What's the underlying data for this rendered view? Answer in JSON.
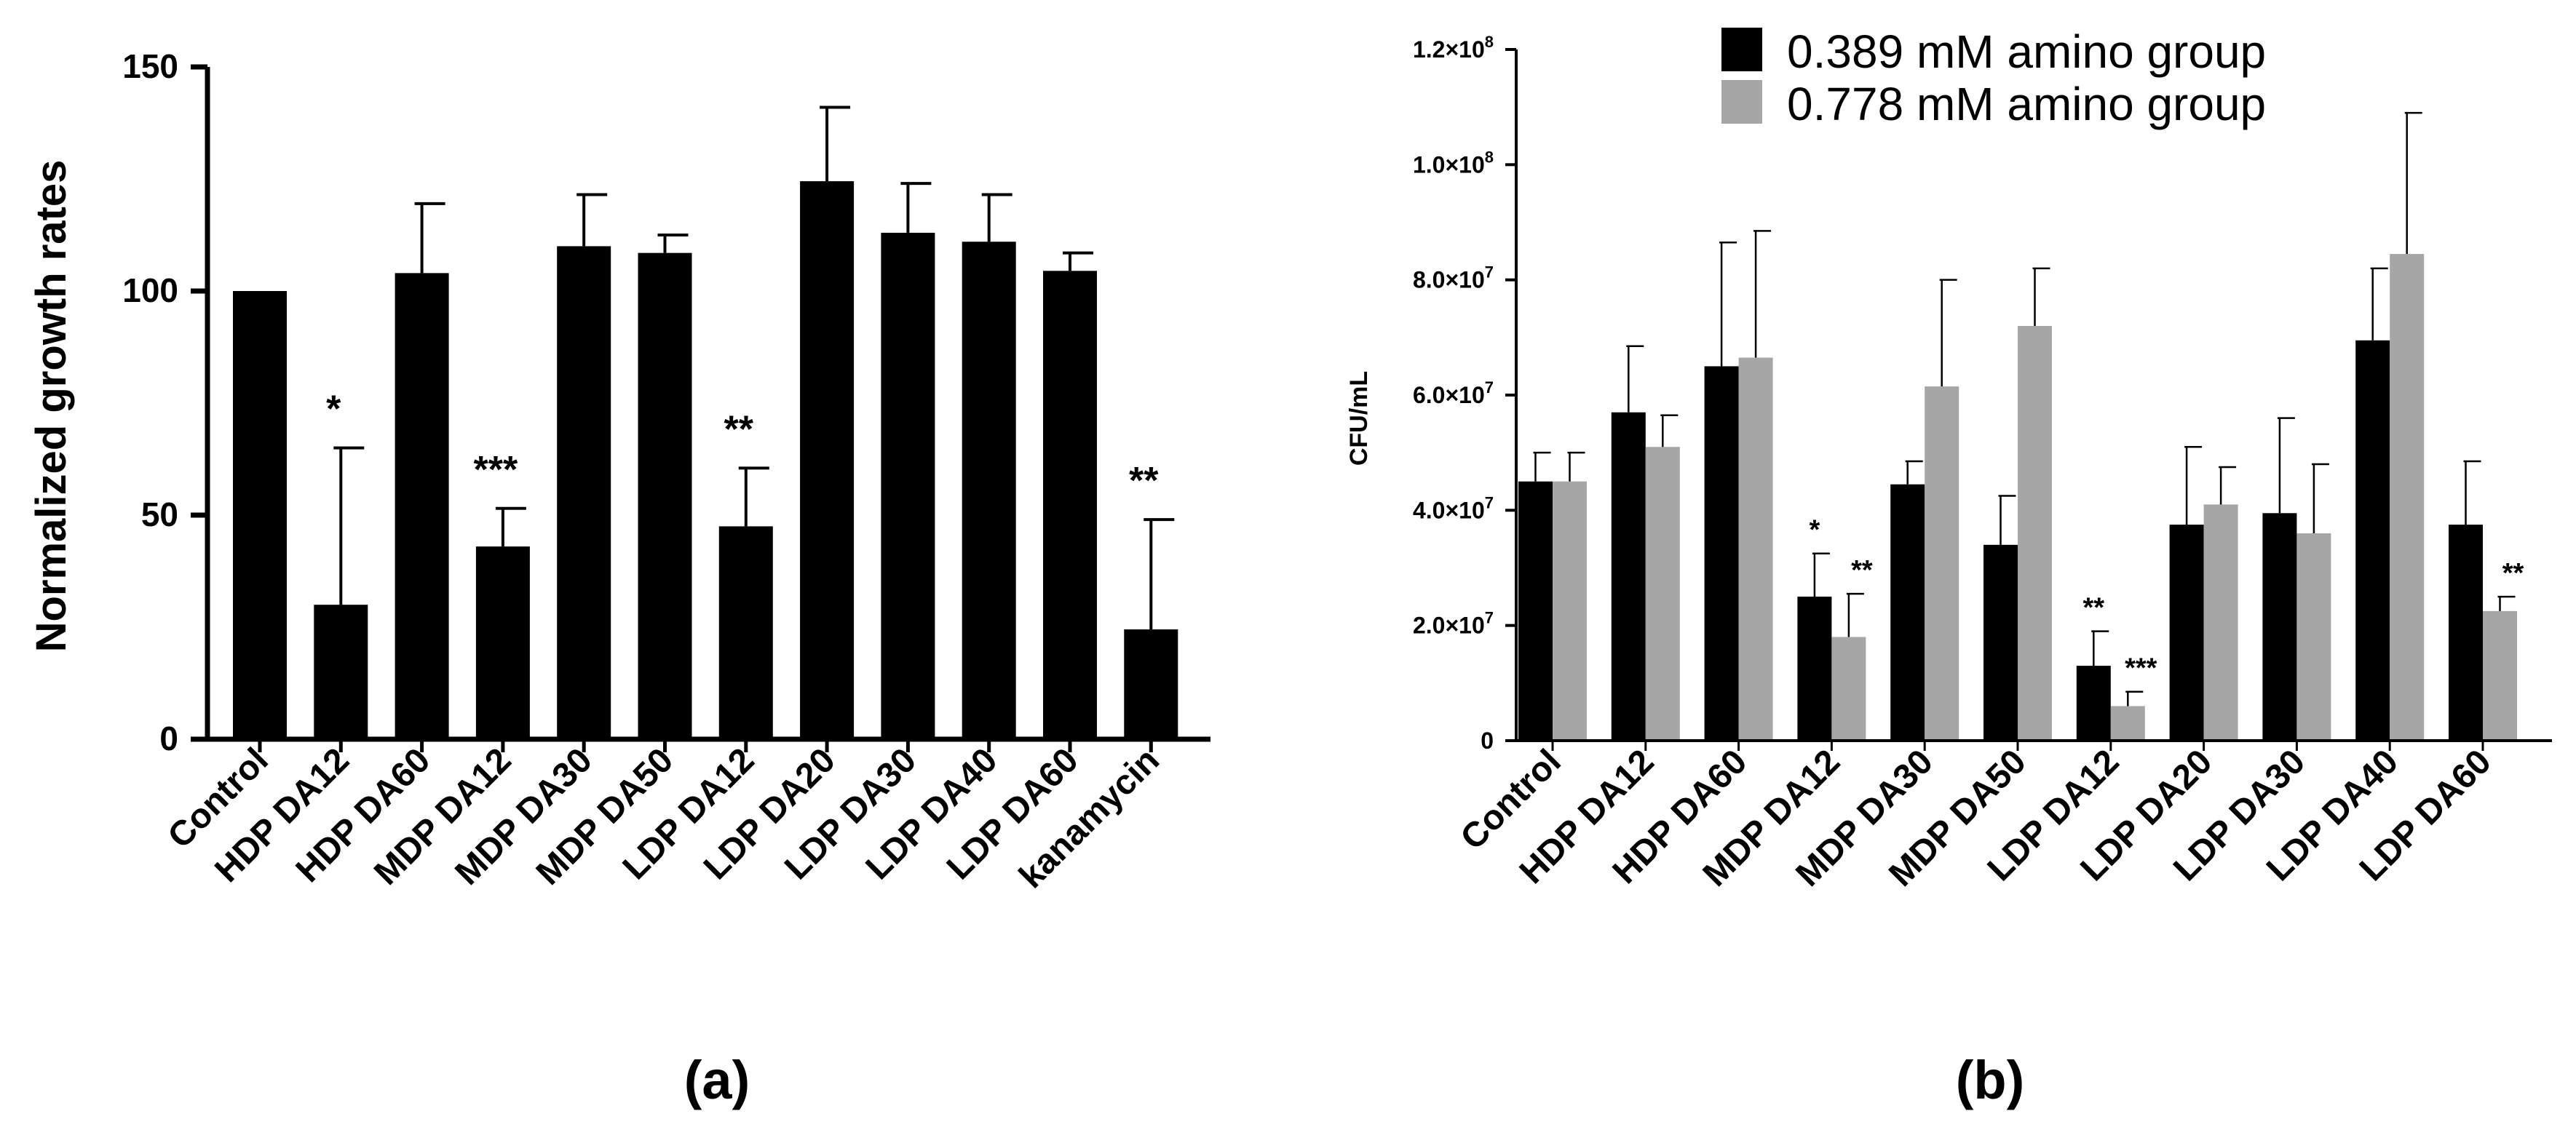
{
  "colors": {
    "dark": "#000000",
    "light": "#a6a6a6",
    "axis": "#000000"
  },
  "chart_data": [
    {
      "type": "bar",
      "panel_label": "(a)",
      "title": "",
      "xlabel": "",
      "ylabel": "Normalized growth rates",
      "ylim": [
        0,
        150
      ],
      "yticks": [
        0,
        50,
        100,
        150
      ],
      "ytick_labels": [
        "0",
        "50",
        "100",
        "150"
      ],
      "categories": [
        "Control",
        "HDP DA12",
        "HDP DA60",
        "MDP DA12",
        "MDP DA30",
        "MDP DA50",
        "LDP DA12",
        "LDP DA20",
        "LDP DA30",
        "LDP DA40",
        "LDP DA60",
        "kanamycin"
      ],
      "series": [
        {
          "name": "Normalized growth rate",
          "values": [
            100,
            30,
            104,
            43,
            110,
            108.5,
            47.5,
            124.5,
            113,
            111,
            104.5,
            24.5
          ],
          "errors": [
            0,
            35,
            15.5,
            8.5,
            11.5,
            4,
            13,
            16.5,
            11,
            10.5,
            4,
            24.5
          ],
          "significance": [
            "",
            "*",
            "",
            "***",
            "",
            "",
            "**",
            "",
            "",
            "",
            "",
            "**"
          ]
        }
      ]
    },
    {
      "type": "bar",
      "panel_label": "(b)",
      "title": "",
      "xlabel": "",
      "ylabel": "CFU/mL",
      "ylim": [
        0,
        120000000
      ],
      "yticks": [
        0,
        20000000,
        40000000,
        60000000,
        80000000,
        100000000,
        120000000
      ],
      "ytick_labels": [
        {
          "mant": "0",
          "exp": ""
        },
        {
          "mant": "2.0×10",
          "exp": "7"
        },
        {
          "mant": "4.0×10",
          "exp": "7"
        },
        {
          "mant": "6.0×10",
          "exp": "7"
        },
        {
          "mant": "8.0×10",
          "exp": "7"
        },
        {
          "mant": "1.0×10",
          "exp": "8"
        },
        {
          "mant": "1.2×10",
          "exp": "8"
        }
      ],
      "legend_position": "top-center",
      "categories": [
        "Control",
        "HDP DA12",
        "HDP DA60",
        "MDP DA12",
        "MDP DA30",
        "MDP DA50",
        "LDP DA12",
        "LDP DA20",
        "LDP DA30",
        "LDP DA40",
        "LDP DA60"
      ],
      "series": [
        {
          "name": "0.389 mM amino group",
          "values": [
            45000000,
            57000000,
            65000000,
            25000000,
            44500000,
            34000000,
            13000000,
            37500000,
            39500000,
            69500000,
            37500000
          ],
          "errors": [
            5000000,
            11500000,
            21500000,
            7500000,
            4000000,
            8500000,
            6000000,
            13500000,
            16500000,
            12500000,
            11000000
          ],
          "significance": [
            "",
            "",
            "",
            "*",
            "",
            "",
            "**",
            "",
            "",
            "",
            ""
          ]
        },
        {
          "name": "0.778 mM amino group",
          "values": [
            45000000,
            51000000,
            66500000,
            18000000,
            61500000,
            72000000,
            6000000,
            41000000,
            36000000,
            84500000,
            22500000
          ],
          "errors": [
            5000000,
            5500000,
            22000000,
            7500000,
            18500000,
            10000000,
            2500000,
            6500000,
            12000000,
            24500000,
            2500000
          ],
          "significance": [
            "",
            "",
            "",
            "**",
            "",
            "",
            "***",
            "",
            "",
            "",
            "**"
          ]
        }
      ]
    }
  ]
}
